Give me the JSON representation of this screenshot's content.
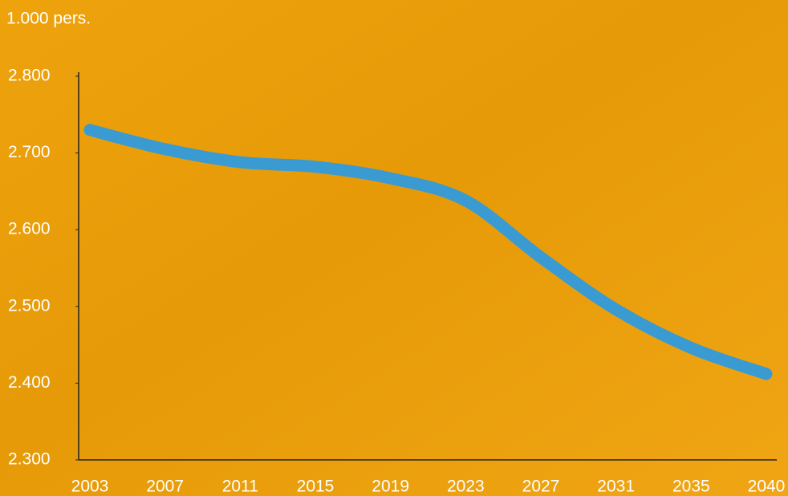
{
  "chart_data": {
    "type": "line",
    "y_label": "1.000 pers.",
    "categories": [
      "2003",
      "2007",
      "2011",
      "2015",
      "2019",
      "2023",
      "2027",
      "2031",
      "2035",
      "2040"
    ],
    "series": [
      {
        "color": "#3a9bd2",
        "values": [
          2730,
          2705,
          2688,
          2682,
          2667,
          2638,
          2564,
          2496,
          2446,
          2412
        ]
      }
    ],
    "ylim": [
      2300,
      2800
    ],
    "yticks": [
      {
        "value": 2300,
        "label": "2.300"
      },
      {
        "value": 2400,
        "label": "2.400"
      },
      {
        "value": 2500,
        "label": "2.500"
      },
      {
        "value": 2600,
        "label": "2.600"
      },
      {
        "value": 2700,
        "label": "2.700"
      },
      {
        "value": 2800,
        "label": "2.800"
      }
    ]
  }
}
